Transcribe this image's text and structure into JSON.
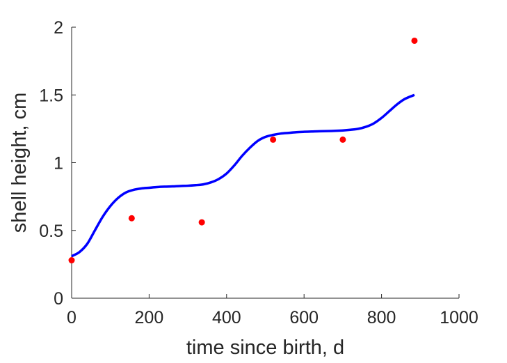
{
  "chart_data": {
    "type": "line",
    "title": "",
    "xlabel": "time since birth, d",
    "ylabel": "shell height, cm",
    "xlim": [
      0,
      1000
    ],
    "ylim": [
      0,
      2
    ],
    "xticks": [
      0,
      200,
      400,
      600,
      800,
      1000
    ],
    "xtick_labels": [
      "0",
      "200",
      "400",
      "600",
      "800",
      "1000"
    ],
    "yticks": [
      0,
      0.5,
      1,
      1.5,
      2
    ],
    "ytick_labels": [
      "0",
      "0.5",
      "1",
      "1.5",
      "2"
    ],
    "grid": false,
    "legend": "none",
    "series": [
      {
        "kind": "line",
        "color": "#0000ff",
        "x": [
          0,
          20,
          40,
          60,
          80,
          100,
          120,
          140,
          160,
          180,
          200,
          220,
          240,
          260,
          280,
          300,
          320,
          340,
          360,
          380,
          400,
          420,
          440,
          460,
          480,
          500,
          520,
          540,
          560,
          580,
          600,
          620,
          640,
          660,
          680,
          700,
          720,
          740,
          760,
          780,
          800,
          820,
          840,
          860,
          885
        ],
        "y": [
          0.31,
          0.34,
          0.4,
          0.5,
          0.6,
          0.68,
          0.74,
          0.78,
          0.8,
          0.81,
          0.815,
          0.82,
          0.823,
          0.825,
          0.828,
          0.83,
          0.834,
          0.84,
          0.855,
          0.88,
          0.92,
          0.98,
          1.05,
          1.11,
          1.16,
          1.19,
          1.205,
          1.215,
          1.22,
          1.225,
          1.228,
          1.23,
          1.232,
          1.233,
          1.235,
          1.238,
          1.243,
          1.25,
          1.265,
          1.29,
          1.33,
          1.38,
          1.43,
          1.47,
          1.5
        ]
      },
      {
        "kind": "scatter",
        "color": "#ff0000",
        "x": [
          0,
          155,
          336,
          520,
          700,
          885
        ],
        "y": [
          0.28,
          0.59,
          0.56,
          1.17,
          1.17,
          1.9
        ]
      }
    ]
  }
}
